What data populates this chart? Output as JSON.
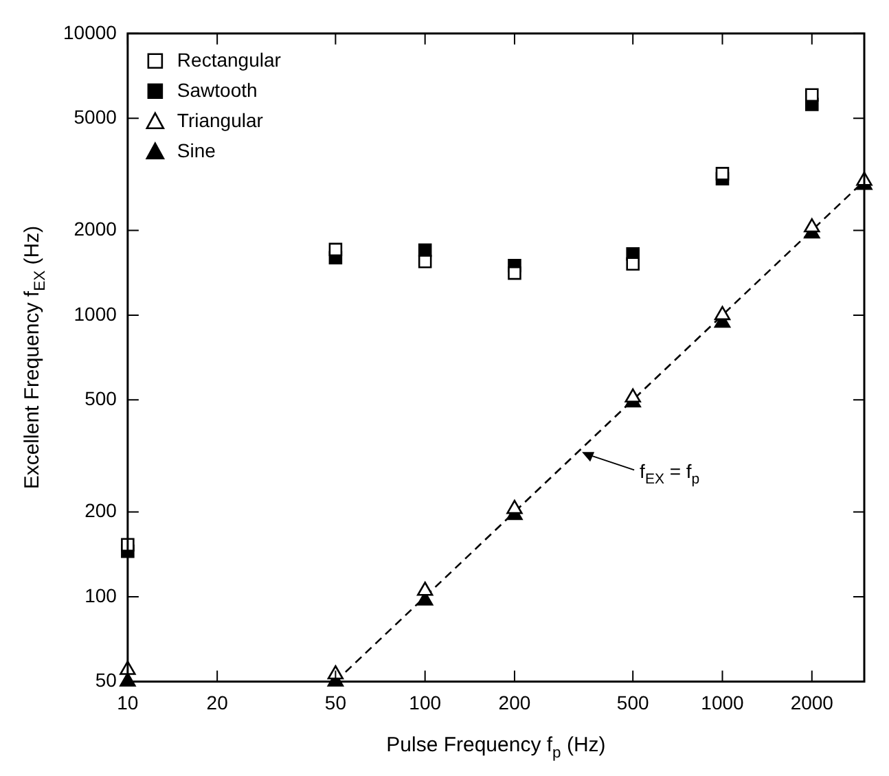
{
  "chart_data": {
    "type": "scatter",
    "xlabel": "Pulse Frequency f$_{p}$ (Hz)",
    "ylabel": "Excellent Frequency f$_{EX}$ (Hz)",
    "log": "xy",
    "xlim": [
      10,
      3000
    ],
    "ylim": [
      50,
      10000
    ],
    "xticks": [
      10,
      20,
      50,
      100,
      200,
      500,
      1000,
      2000
    ],
    "yticks": [
      50,
      100,
      200,
      500,
      1000,
      2000,
      5000,
      10000
    ],
    "grid": false,
    "legend": "top left",
    "series": [
      {
        "name": "Rectangular",
        "color": "#ffffff",
        "marker": "square",
        "x": [
          10,
          50,
          100,
          200,
          500,
          1000,
          2000
        ],
        "values": [
          153,
          1710,
          1550,
          1410,
          1520,
          3180,
          6050
        ]
      },
      {
        "name": "Sawtooth",
        "color": "#000000",
        "marker": "square",
        "x": [
          10,
          50,
          100,
          200,
          500,
          1000,
          2000
        ],
        "values": [
          145,
          1600,
          1700,
          1500,
          1650,
          3050,
          5600
        ]
      },
      {
        "name": "Triangular",
        "color": "#ffffff",
        "marker": "triangle",
        "x": [
          10,
          50,
          100,
          200,
          500,
          1000,
          2000,
          3000
        ],
        "values": [
          55,
          53,
          105,
          205,
          510,
          1000,
          2050,
          3000
        ]
      },
      {
        "name": "Sine",
        "color": "#000000",
        "marker": "triangle",
        "x": [
          10,
          50,
          100,
          200,
          500,
          1000,
          2000,
          3000
        ],
        "values": [
          50,
          50,
          97,
          195,
          490,
          940,
          1950,
          2900
        ]
      },
      {
        "type": "line",
        "color": "#000000",
        "line_style": "dashed",
        "marker": "none",
        "x": [
          50,
          3000
        ],
        "values": [
          50,
          3000
        ]
      }
    ],
    "annotations": [
      {
        "text": "f$_{EX}$ = f$_{p}$",
        "x": 330,
        "y": 330
      }
    ]
  }
}
